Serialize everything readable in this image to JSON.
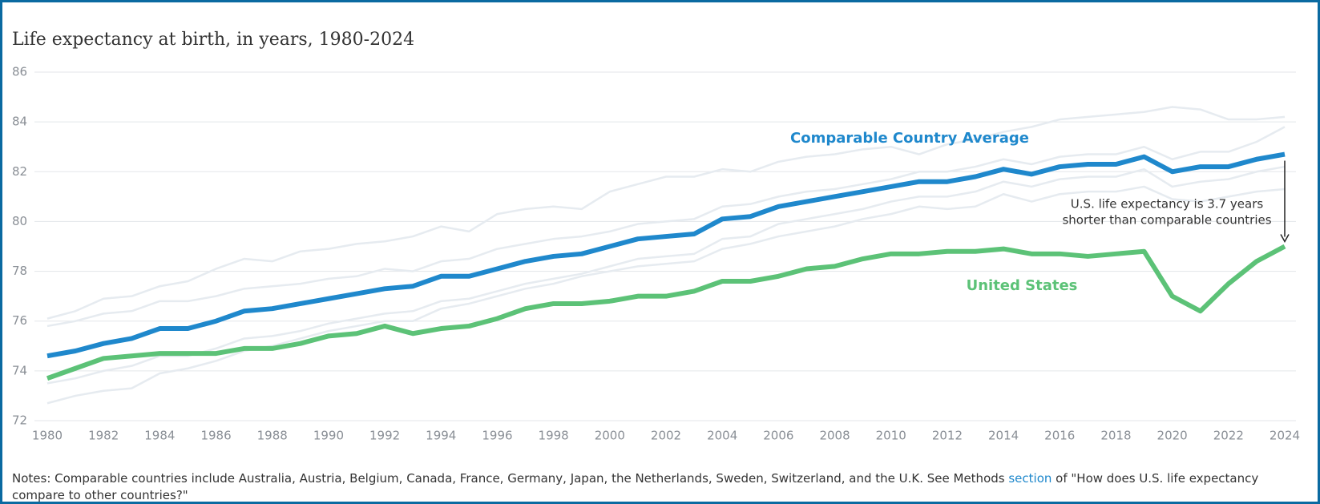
{
  "chart_data": {
    "type": "line",
    "title": "Life expectancy at birth, in years, 1980-2024",
    "x": [
      1980,
      1981,
      1982,
      1983,
      1984,
      1985,
      1986,
      1987,
      1988,
      1989,
      1990,
      1991,
      1992,
      1993,
      1994,
      1995,
      1996,
      1997,
      1998,
      1999,
      2000,
      2001,
      2002,
      2003,
      2004,
      2005,
      2006,
      2007,
      2008,
      2009,
      2010,
      2011,
      2012,
      2013,
      2014,
      2015,
      2016,
      2017,
      2018,
      2019,
      2020,
      2021,
      2022,
      2023,
      2024
    ],
    "xlim": [
      1980,
      2024
    ],
    "xticks": [
      1980,
      1982,
      1984,
      1986,
      1988,
      1990,
      1992,
      1994,
      1996,
      1998,
      2000,
      2002,
      2004,
      2006,
      2008,
      2010,
      2012,
      2014,
      2016,
      2018,
      2020,
      2022,
      2024
    ],
    "ylim": [
      72,
      86
    ],
    "yticks": [
      72,
      74,
      76,
      78,
      80,
      82,
      84,
      86
    ],
    "grid": true,
    "background_series": [
      {
        "color": "#e6ebf0",
        "values": [
          76.1,
          76.4,
          76.9,
          77.0,
          77.4,
          77.6,
          78.1,
          78.5,
          78.4,
          78.8,
          78.9,
          79.1,
          79.2,
          79.4,
          79.8,
          79.6,
          80.3,
          80.5,
          80.6,
          80.5,
          81.2,
          81.5,
          81.8,
          81.8,
          82.1,
          82.0,
          82.4,
          82.6,
          82.7,
          82.9,
          83.0,
          82.7,
          83.1,
          83.3,
          83.6,
          83.8,
          84.1,
          84.2,
          84.3,
          84.4,
          84.6,
          84.5,
          84.1,
          84.1,
          84.2
        ]
      },
      {
        "color": "#e6ebf0",
        "values": [
          75.8,
          76.0,
          76.3,
          76.4,
          76.8,
          76.8,
          77.0,
          77.3,
          77.4,
          77.5,
          77.7,
          77.8,
          78.1,
          78.0,
          78.4,
          78.5,
          78.9,
          79.1,
          79.3,
          79.4,
          79.6,
          79.9,
          80.0,
          80.1,
          80.6,
          80.7,
          81.0,
          81.2,
          81.3,
          81.5,
          81.7,
          82.0,
          82.0,
          82.2,
          82.5,
          82.3,
          82.6,
          82.7,
          82.7,
          83.0,
          82.5,
          82.8,
          82.8,
          83.2,
          83.8
        ]
      },
      {
        "color": "#e6ebf0",
        "values": [
          73.5,
          73.7,
          74.0,
          74.2,
          74.6,
          74.6,
          74.9,
          75.3,
          75.4,
          75.6,
          75.9,
          76.1,
          76.3,
          76.4,
          76.8,
          76.9,
          77.2,
          77.5,
          77.7,
          77.9,
          78.2,
          78.5,
          78.6,
          78.7,
          79.3,
          79.4,
          79.9,
          80.1,
          80.3,
          80.5,
          80.8,
          81.0,
          81.0,
          81.2,
          81.6,
          81.4,
          81.7,
          81.8,
          81.8,
          82.1,
          81.4,
          81.6,
          81.7,
          82.0,
          82.2
        ]
      },
      {
        "color": "#e6ebf0",
        "values": [
          72.7,
          73.0,
          73.2,
          73.3,
          73.9,
          74.1,
          74.4,
          74.8,
          75.0,
          75.3,
          75.6,
          75.8,
          76.0,
          76.0,
          76.5,
          76.7,
          77.0,
          77.3,
          77.5,
          77.8,
          78.0,
          78.2,
          78.3,
          78.4,
          78.9,
          79.1,
          79.4,
          79.6,
          79.8,
          80.1,
          80.3,
          80.6,
          80.5,
          80.6,
          81.1,
          80.8,
          81.1,
          81.2,
          81.2,
          81.4,
          80.9,
          80.8,
          81.0,
          81.2,
          81.3
        ]
      }
    ],
    "series": [
      {
        "name": "Comparable Country Average",
        "color": "#1f88cc",
        "values": [
          74.6,
          74.8,
          75.1,
          75.3,
          75.7,
          75.7,
          76.0,
          76.4,
          76.5,
          76.7,
          76.9,
          77.1,
          77.3,
          77.4,
          77.8,
          77.8,
          78.1,
          78.4,
          78.6,
          78.7,
          79.0,
          79.3,
          79.4,
          79.5,
          80.1,
          80.2,
          80.6,
          80.8,
          81.0,
          81.2,
          81.4,
          81.6,
          81.6,
          81.8,
          82.1,
          81.9,
          82.2,
          82.3,
          82.3,
          82.6,
          82.0,
          82.2,
          82.2,
          82.5,
          82.7
        ]
      },
      {
        "name": "United States",
        "color": "#5cc277",
        "values": [
          73.7,
          74.1,
          74.5,
          74.6,
          74.7,
          74.7,
          74.7,
          74.9,
          74.9,
          75.1,
          75.4,
          75.5,
          75.8,
          75.5,
          75.7,
          75.8,
          76.1,
          76.5,
          76.7,
          76.7,
          76.8,
          77.0,
          77.0,
          77.2,
          77.6,
          77.6,
          77.8,
          78.1,
          78.2,
          78.5,
          78.7,
          78.7,
          78.8,
          78.8,
          78.9,
          78.7,
          78.7,
          78.6,
          78.7,
          78.8,
          77.0,
          76.4,
          77.5,
          78.4,
          79.0
        ]
      }
    ],
    "annotation": [
      "U.S. life expectancy is 3.7 years",
      "shorter than comparable countries"
    ],
    "notes": {
      "before": "Notes: Comparable countries include Australia, Austria, Belgium, Canada, France, Germany, Japan, the Netherlands, Sweden, Switzerland, and the U.K. See Methods ",
      "link": "section",
      "after": " of \"How does U.S. life expectancy compare to other countries?\""
    }
  }
}
